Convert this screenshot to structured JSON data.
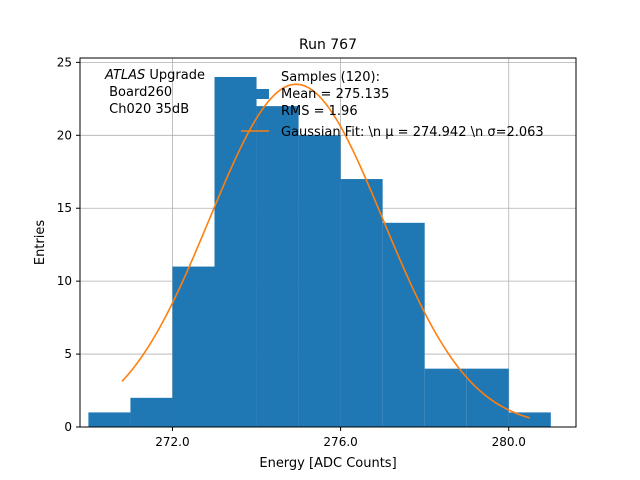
{
  "chart_data": {
    "type": "bar",
    "title": "Run 767",
    "xlabel": "Energy [ADC Counts]",
    "ylabel": "Entries",
    "xlim": [
      269.8,
      281.6
    ],
    "ylim": [
      0,
      25.3
    ],
    "xticks": [
      272,
      276,
      280
    ],
    "xtick_labels": [
      "272.0",
      "276.0",
      "280.0"
    ],
    "yticks": [
      0,
      5,
      10,
      15,
      20,
      25
    ],
    "ytick_labels": [
      "0",
      "5",
      "10",
      "15",
      "20",
      "25"
    ],
    "grid": true,
    "bins": [
      {
        "x0": 270,
        "x1": 271,
        "count": 1
      },
      {
        "x0": 271,
        "x1": 272,
        "count": 2
      },
      {
        "x0": 272,
        "x1": 273,
        "count": 11
      },
      {
        "x0": 273,
        "x1": 274,
        "count": 24
      },
      {
        "x0": 274,
        "x1": 275,
        "count": 22
      },
      {
        "x0": 275,
        "x1": 276,
        "count": 20
      },
      {
        "x0": 276,
        "x1": 277,
        "count": 17
      },
      {
        "x0": 277,
        "x1": 278,
        "count": 14
      },
      {
        "x0": 278,
        "x1": 279,
        "count": 4
      },
      {
        "x0": 279,
        "x1": 280,
        "count": 4
      },
      {
        "x0": 280,
        "x1": 281,
        "count": 1
      }
    ],
    "fit": {
      "type": "gaussian",
      "mu": 274.942,
      "sigma": 2.063,
      "amplitude": 23.5,
      "x_range": [
        270.8,
        280.5
      ]
    },
    "annotation_lines": [
      {
        "italic": "ATLAS",
        "text": " Upgrade"
      },
      {
        "italic": "",
        "text": " Board260"
      },
      {
        "italic": "",
        "text": " Ch020 35dB"
      }
    ],
    "legend": {
      "location": "upper-right",
      "entries": [
        {
          "kind": "patch",
          "label_lines": [
            "Samples (120):",
            "Mean = 275.135",
            "RMS = 1.96"
          ]
        },
        {
          "kind": "line",
          "label_lines": [
            "Gaussian Fit: \\n μ = 274.942 \\n σ=2.063"
          ]
        }
      ]
    },
    "colors": {
      "bars": "#1f77b4",
      "fit": "#ff7f0e",
      "grid": "#b0b0b0"
    }
  }
}
